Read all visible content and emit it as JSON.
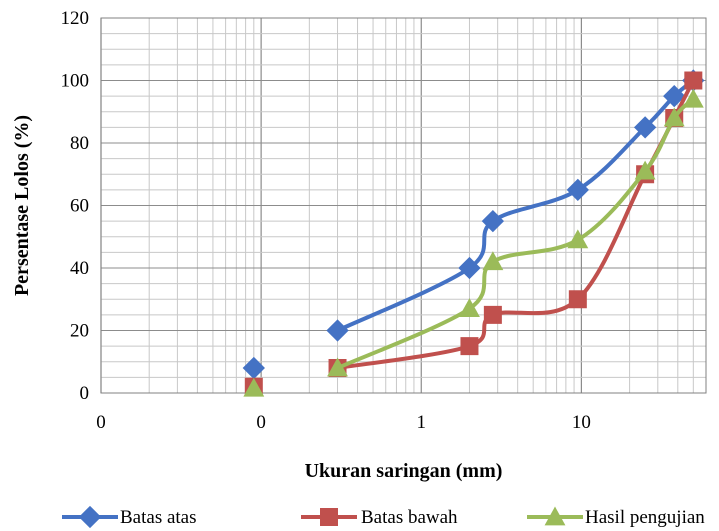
{
  "chart_data": {
    "type": "line",
    "xscale": "log",
    "xlim": [
      0.01,
      60
    ],
    "ylim": [
      0,
      120
    ],
    "xlabel": "Ukuran saringan (mm)",
    "ylabel": "Persentase Lolos (%)",
    "x_tick_values": [
      0.01,
      0.1,
      1,
      10
    ],
    "x_tick_labels": [
      "0",
      "0",
      "1",
      "10"
    ],
    "y_ticks": [
      0,
      20,
      40,
      60,
      80,
      100,
      120
    ],
    "grid": "major and minor (log) gridlines",
    "legend_position": "bottom",
    "series": [
      {
        "name": "Batas atas",
        "color": "#4472C4",
        "marker": "diamond",
        "points": [
          [
            0.09,
            8
          ],
          [
            0.3,
            20
          ],
          [
            2.0,
            40
          ],
          [
            2.8,
            55
          ],
          [
            9.5,
            65
          ],
          [
            25,
            85
          ],
          [
            38,
            95
          ],
          [
            50,
            100
          ]
        ]
      },
      {
        "name": "Batas bawah",
        "color": "#C0504D",
        "marker": "square",
        "points": [
          [
            0.09,
            2
          ],
          [
            0.3,
            8
          ],
          [
            2.0,
            15
          ],
          [
            2.8,
            25
          ],
          [
            9.5,
            30
          ],
          [
            25,
            70
          ],
          [
            38,
            88
          ],
          [
            50,
            100
          ]
        ]
      },
      {
        "name": "Hasil pengujian",
        "color": "#9BBB59",
        "marker": "triangle",
        "points": [
          [
            0.09,
            1.5
          ],
          [
            0.3,
            8
          ],
          [
            2.0,
            27
          ],
          [
            2.8,
            42
          ],
          [
            9.5,
            49
          ],
          [
            25,
            71
          ],
          [
            38,
            88
          ],
          [
            50,
            94
          ]
        ]
      }
    ]
  }
}
